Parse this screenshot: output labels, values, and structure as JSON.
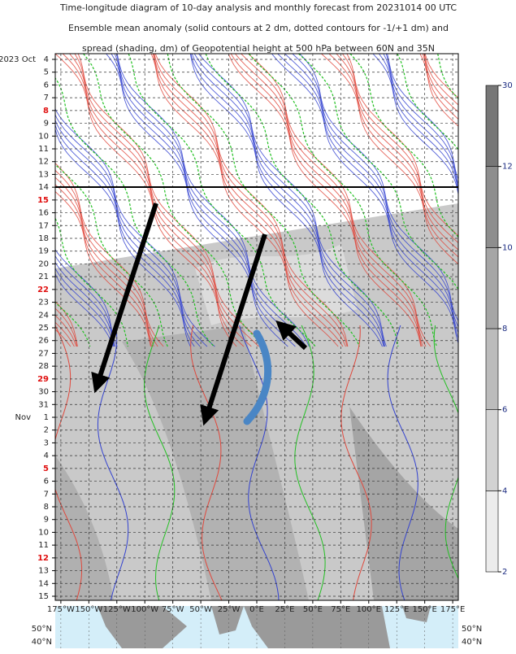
{
  "chart_data": {
    "type": "hovmoller",
    "title": [
      "Time-longitude diagram of 10-day analysis and monthly forecast from 20231014 00 UTC",
      "Ensemble mean anomaly (solid contours at 2 dm, dotted contours for -1/+1 dm) and",
      "spread (shading, dm) of Geopotential height at 500 hPa between 60N and 35N"
    ],
    "y_categories": [
      "4",
      "5",
      "6",
      "7",
      "8",
      "9",
      "10",
      "11",
      "12",
      "13",
      "14",
      "15",
      "16",
      "17",
      "18",
      "19",
      "20",
      "21",
      "22",
      "23",
      "24",
      "25",
      "26",
      "27",
      "28",
      "29",
      "30",
      "31",
      "1",
      "2",
      "3",
      "4",
      "5",
      "6",
      "7",
      "8",
      "9",
      "10",
      "11",
      "12",
      "13",
      "14",
      "15"
    ],
    "y_month_labels": [
      "2023 Oct",
      null,
      null,
      null,
      null,
      null,
      null,
      null,
      null,
      null,
      null,
      null,
      null,
      null,
      null,
      null,
      null,
      null,
      null,
      null,
      null,
      null,
      null,
      null,
      null,
      null,
      null,
      null,
      "Nov",
      null,
      null,
      null,
      null,
      null,
      null,
      null,
      null,
      null,
      null,
      null,
      null,
      null,
      null
    ],
    "y_category_colors": [
      "#222",
      "#222",
      "#222",
      "#222",
      "#e01010",
      "#222",
      "#222",
      "#222",
      "#222",
      "#222",
      "#222",
      "#e01010",
      "#222",
      "#222",
      "#222",
      "#222",
      "#222",
      "#222",
      "#e01010",
      "#222",
      "#222",
      "#222",
      "#222",
      "#222",
      "#222",
      "#e01010",
      "#222",
      "#222",
      "#222",
      "#222",
      "#222",
      "#222",
      "#e01010",
      "#222",
      "#222",
      "#222",
      "#222",
      "#222",
      "#222",
      "#e01010",
      "#222",
      "#222",
      "#222"
    ],
    "xlim": [
      -180,
      180
    ],
    "xticks": [
      {
        "value": -175,
        "label": "175°W"
      },
      {
        "value": -150,
        "label": "150°W"
      },
      {
        "value": -125,
        "label": "125°W"
      },
      {
        "value": -100,
        "label": "100°W"
      },
      {
        "value": -75,
        "label": "75°W"
      },
      {
        "value": -50,
        "label": "50°W"
      },
      {
        "value": -25,
        "label": "25°W"
      },
      {
        "value": 0,
        "label": "0°E"
      },
      {
        "value": 25,
        "label": "25°E"
      },
      {
        "value": 50,
        "label": "50°E"
      },
      {
        "value": 75,
        "label": "75°E"
      },
      {
        "value": 100,
        "label": "100°E"
      },
      {
        "value": 125,
        "label": "125°E"
      },
      {
        "value": 150,
        "label": "150°E"
      },
      {
        "value": 175,
        "label": "175°E"
      }
    ],
    "grid": true,
    "colorbar": {
      "levels": [
        2,
        4,
        6,
        8,
        10,
        12,
        30
      ],
      "colors": [
        "#ececec",
        "#d2d2d2",
        "#bcbcbc",
        "#a6a6a6",
        "#8e8e8e",
        "#777777"
      ],
      "tick_color": "#1a2a80"
    },
    "map": {
      "lat_labels": [
        "50°N",
        "40°N"
      ]
    }
  }
}
